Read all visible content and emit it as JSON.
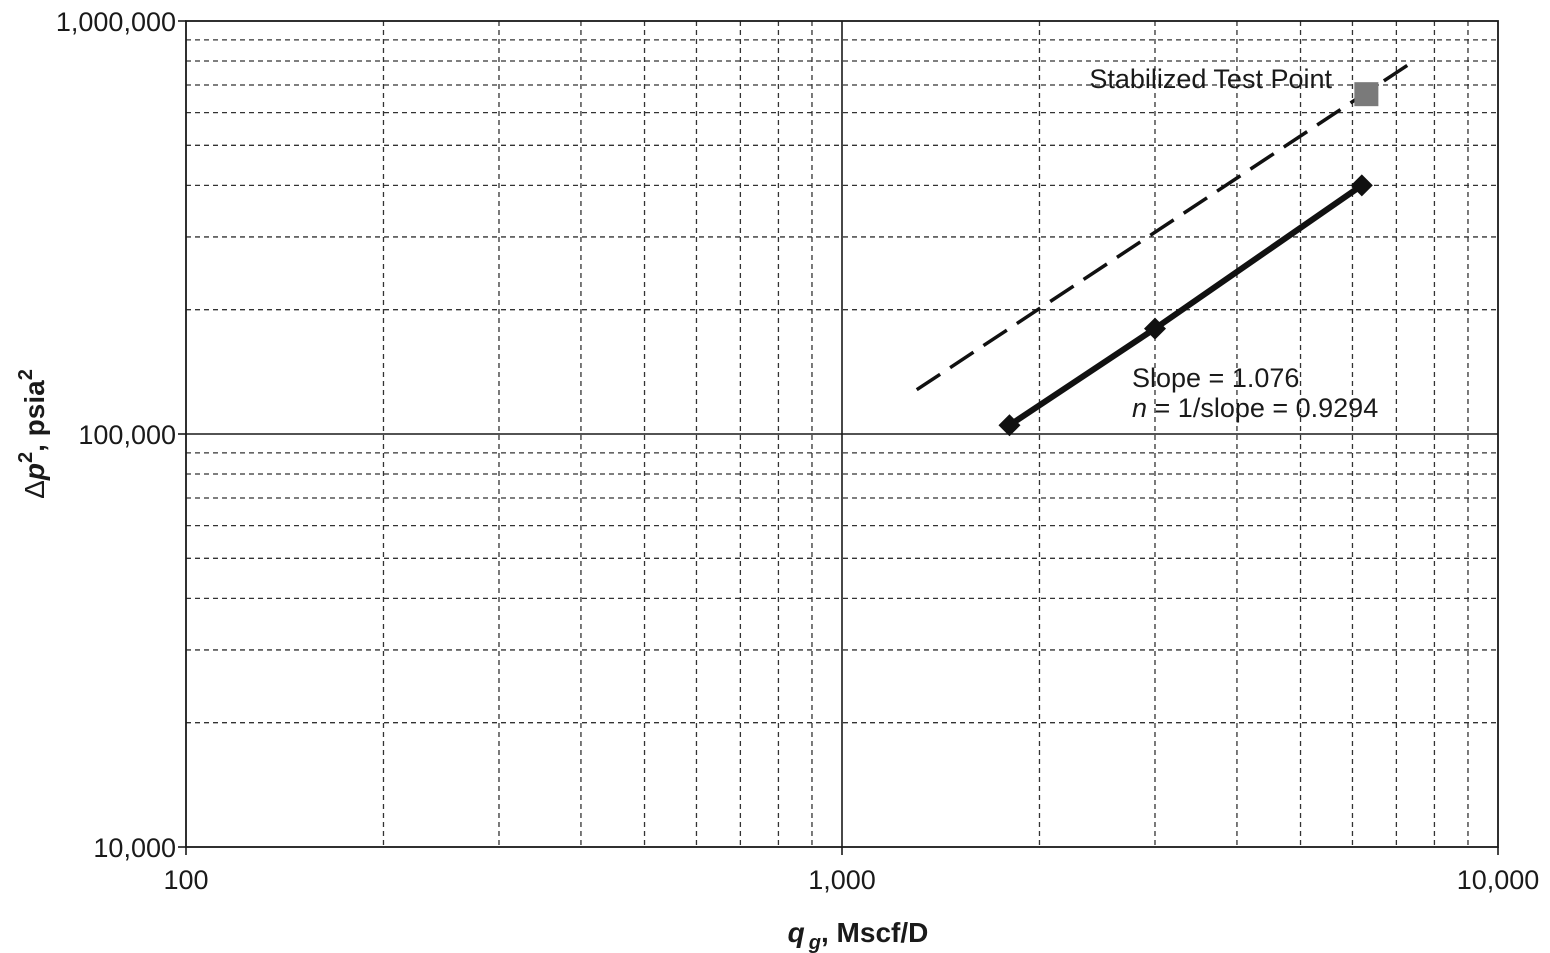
{
  "chart_data": {
    "type": "scatter",
    "x_scale": "log",
    "y_scale": "log",
    "xlim": [
      100,
      10000
    ],
    "ylim": [
      10000,
      1000000
    ],
    "grid": true,
    "x_ticks": [
      "100",
      "1,000",
      "10,000"
    ],
    "y_ticks": [
      "10,000",
      "100,000",
      "1,000,000"
    ],
    "xlabel": {
      "symbol": "q",
      "subscript": "g",
      "text": ", Mscf/D"
    },
    "ylabel": {
      "delta": "Δ",
      "symbol": "p",
      "sup1": "2",
      "text": ", psia",
      "sup2": "2"
    },
    "series": [
      {
        "style": "solid-diamond",
        "points": [
          {
            "x": 1800,
            "y": 105000
          },
          {
            "x": 3000,
            "y": 180000
          },
          {
            "x": 6200,
            "y": 400000
          }
        ]
      },
      {
        "style": "dashed-line",
        "points": [
          {
            "x": 1300,
            "y": 128000
          },
          {
            "x": 7400,
            "y": 795000
          }
        ]
      },
      {
        "style": "gray-square",
        "points": [
          {
            "x": 6300,
            "y": 665000
          }
        ]
      }
    ],
    "annotations": {
      "stabilized": "Stabilized Test Point",
      "slope": "Slope = 1.076",
      "n_symbol": "n",
      "n_rest": " = 1/slope = 0.9294"
    }
  }
}
